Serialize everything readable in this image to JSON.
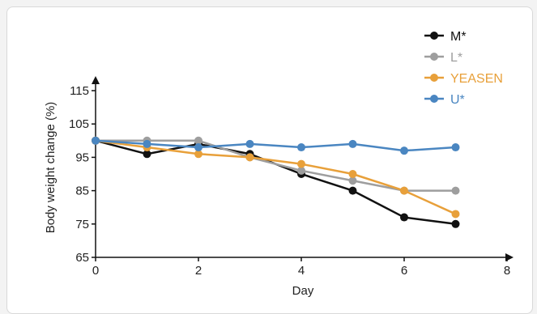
{
  "chart_data": {
    "type": "line",
    "xlabel": "Day",
    "ylabel": "Body weight change (%)",
    "xlim": [
      0,
      8
    ],
    "ylim": [
      65,
      115
    ],
    "x_ticks": [
      0,
      2,
      4,
      6,
      8
    ],
    "y_ticks": [
      65,
      75,
      85,
      95,
      105,
      115
    ],
    "grid": false,
    "legend_position": "top-right",
    "series": [
      {
        "name": "M*",
        "color": "#111111",
        "points": [
          [
            0,
            100
          ],
          [
            1,
            96
          ],
          [
            2,
            99
          ],
          [
            3,
            96
          ],
          [
            4,
            90
          ],
          [
            5,
            85
          ],
          [
            6,
            77
          ],
          [
            7,
            75
          ]
        ]
      },
      {
        "name": "L*",
        "color": "#9e9e9e",
        "points": [
          [
            0,
            100
          ],
          [
            1,
            100
          ],
          [
            2,
            100
          ],
          [
            3,
            95
          ],
          [
            4,
            91
          ],
          [
            5,
            88
          ],
          [
            6,
            85
          ],
          [
            7,
            85
          ]
        ]
      },
      {
        "name": "YEASEN",
        "color": "#e8a03a",
        "points": [
          [
            0,
            100
          ],
          [
            1,
            98
          ],
          [
            2,
            96
          ],
          [
            3,
            95
          ],
          [
            4,
            93
          ],
          [
            5,
            90
          ],
          [
            6,
            85
          ],
          [
            7,
            78
          ]
        ]
      },
      {
        "name": "U*",
        "color": "#4a86c1",
        "points": [
          [
            0,
            100
          ],
          [
            1,
            99
          ],
          [
            2,
            98
          ],
          [
            3,
            99
          ],
          [
            4,
            98
          ],
          [
            5,
            99
          ],
          [
            6,
            97
          ],
          [
            7,
            98
          ]
        ]
      }
    ]
  }
}
